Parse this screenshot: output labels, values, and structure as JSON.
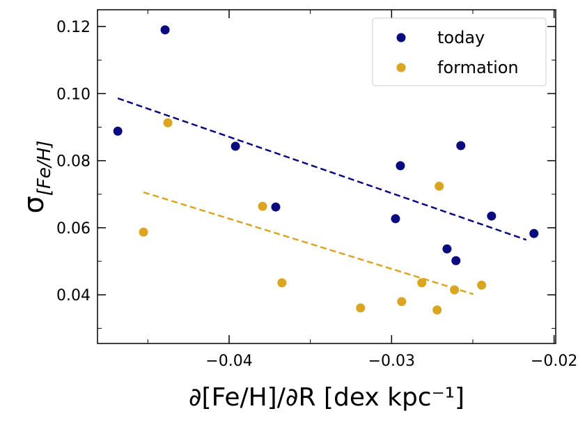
{
  "chart_data": {
    "type": "scatter",
    "xlabel": "∂[Fe/H]/∂R [dex kpc⁻¹]",
    "ylabel": "σ",
    "ylabel_sub": "[Fe/H]",
    "xlim": [
      -0.0481,
      -0.0199
    ],
    "ylim": [
      0.0255,
      0.125
    ],
    "xticks": [
      {
        "value": -0.04,
        "label": "−0.04"
      },
      {
        "value": -0.03,
        "label": "−0.03"
      },
      {
        "value": -0.02,
        "label": "−0.02"
      }
    ],
    "yticks": [
      0.04,
      0.06,
      0.08,
      {
        "value": 0.1,
        "label": "0.10"
      },
      0.12
    ],
    "xminor": [
      -0.045,
      -0.035,
      -0.025
    ],
    "yminor": [
      0.03,
      0.05,
      0.07,
      0.09,
      0.11
    ],
    "legend": "upper right",
    "series": [
      {
        "name": "today",
        "color": "#0b0b80",
        "x": [
          -0.04685,
          -0.04394,
          -0.03961,
          -0.03713,
          -0.02946,
          -0.02976,
          -0.02574,
          -0.02659,
          -0.02604,
          -0.02385,
          -0.02124
        ],
        "values": [
          0.0888,
          0.119,
          0.0843,
          0.0662,
          0.0785,
          0.0627,
          0.0845,
          0.0537,
          0.0502,
          0.0635,
          0.0583
        ],
        "fit": {
          "x": [
            -0.04685,
            -0.02171
          ],
          "values": [
            0.0986,
            0.0564
          ]
        }
      },
      {
        "name": "formation",
        "color": "#daa520",
        "x": [
          -0.04377,
          -0.04527,
          -0.03794,
          -0.03675,
          -0.03191,
          -0.02938,
          -0.02814,
          -0.0272,
          -0.02707,
          -0.02613,
          -0.02446
        ],
        "values": [
          0.0913,
          0.0587,
          0.0664,
          0.0436,
          0.0361,
          0.038,
          0.0436,
          0.0355,
          0.0724,
          0.0415,
          0.0429
        ],
        "fit": {
          "x": [
            -0.04527,
            -0.02497
          ],
          "values": [
            0.0706,
            0.0402
          ]
        }
      }
    ]
  }
}
